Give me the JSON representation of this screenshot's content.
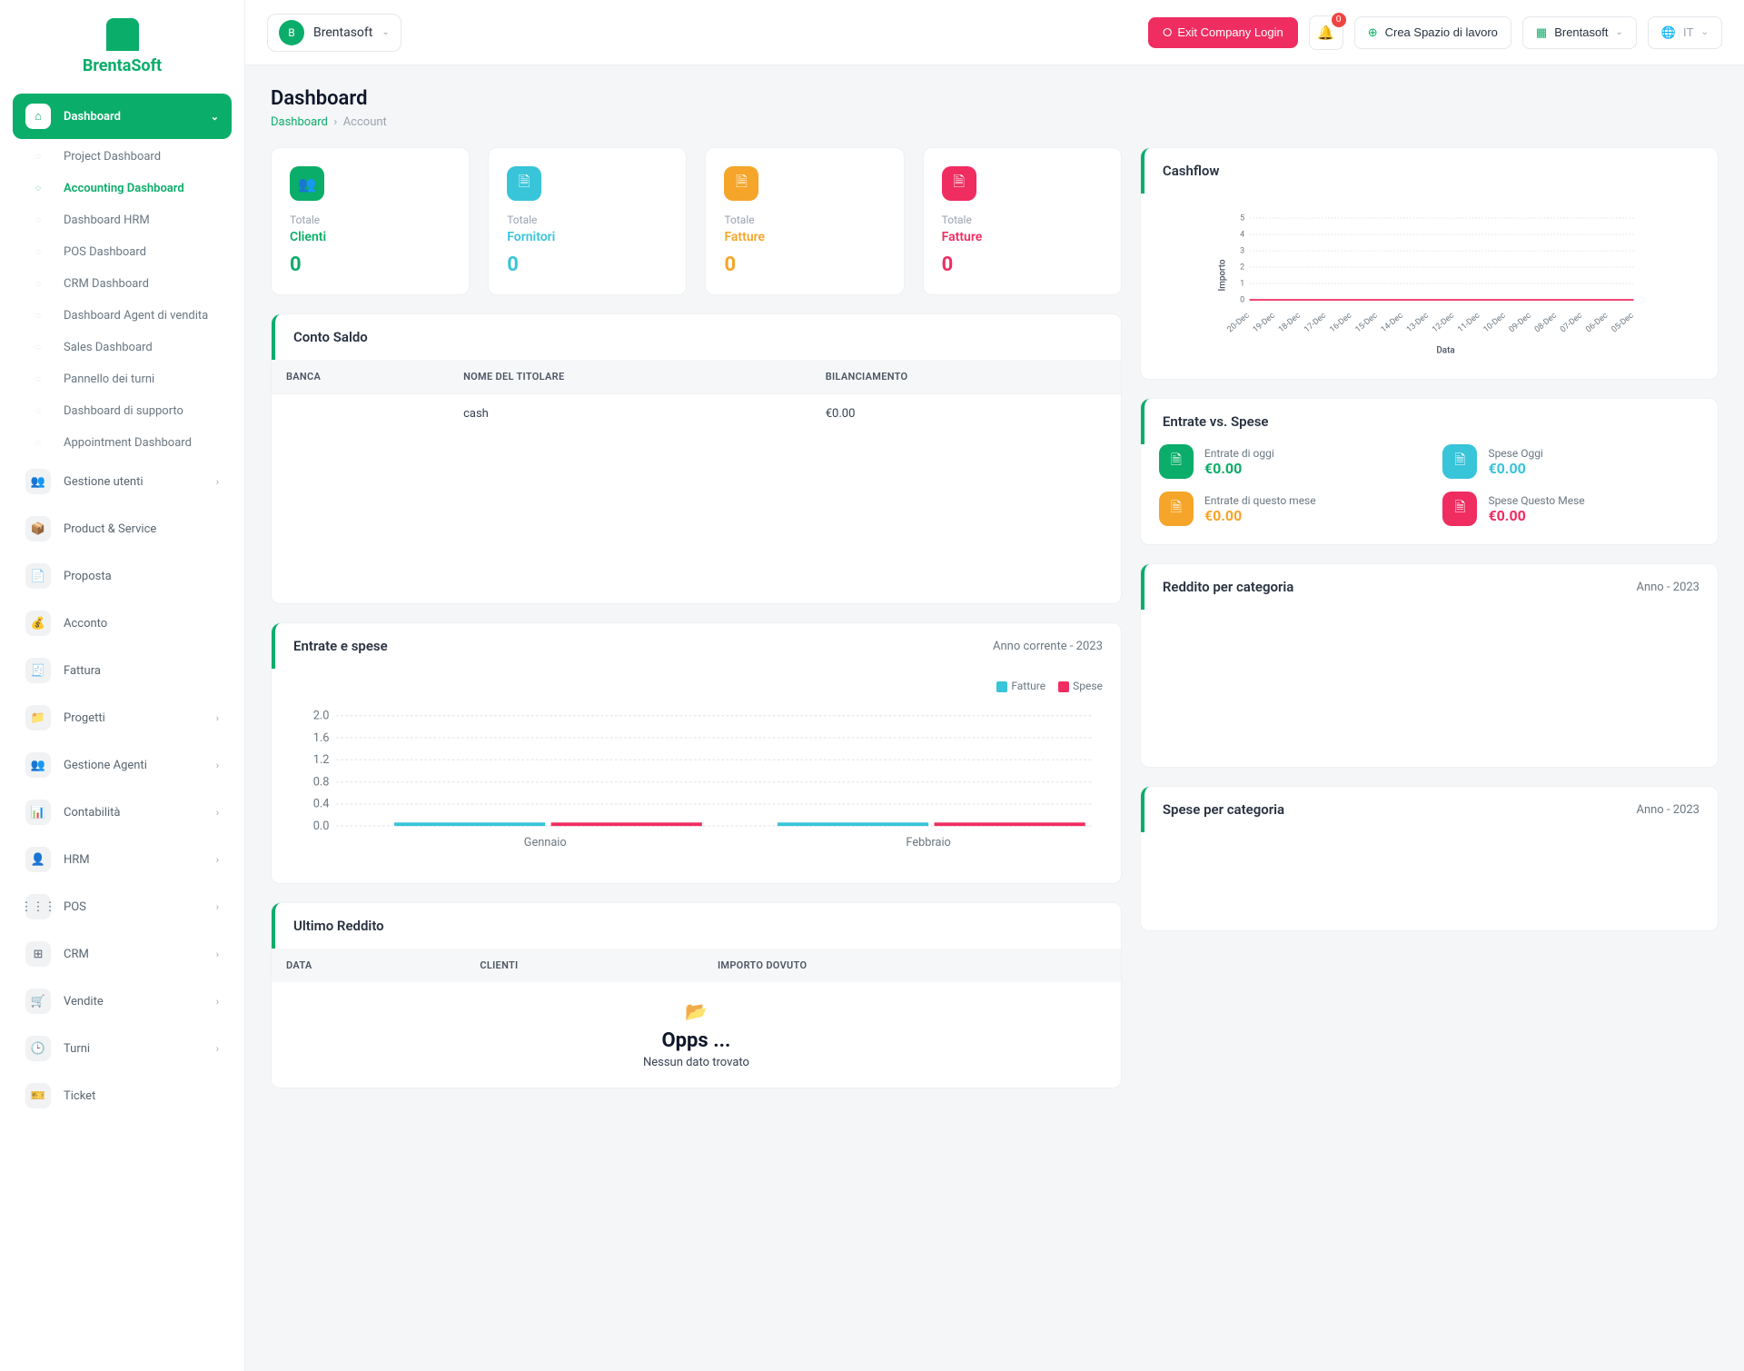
{
  "brand": {
    "name": "BrentaSoft"
  },
  "topbar": {
    "company": "Brentasoft",
    "exit_label": "Exit Company Login",
    "notif_count": "0",
    "create_workspace": "Crea Spazio di lavoro",
    "user": "Brentasoft",
    "lang": "IT"
  },
  "page": {
    "title": "Dashboard",
    "crumb_home": "Dashboard",
    "crumb_current": "Account"
  },
  "sidebar": {
    "dashboard": "Dashboard",
    "subs": [
      "Project Dashboard",
      "Accounting Dashboard",
      "Dashboard HRM",
      "POS Dashboard",
      "CRM Dashboard",
      "Dashboard Agent di vendita",
      "Sales Dashboard",
      "Pannello dei turni",
      "Dashboard di supporto",
      "Appointment Dashboard"
    ],
    "items": [
      "Gestione utenti",
      "Product & Service",
      "Proposta",
      "Acconto",
      "Fattura",
      "Progetti",
      "Gestione Agenti",
      "Contabilità",
      "HRM",
      "POS",
      "CRM",
      "Vendite",
      "Turni",
      "Ticket"
    ],
    "chevron_idx": [
      0,
      5,
      6,
      7,
      8,
      9,
      10,
      11,
      12
    ]
  },
  "kpi": {
    "sub": "Totale",
    "cards": [
      {
        "label": "Clienti",
        "val": "0",
        "color": "green",
        "icon": "👥"
      },
      {
        "label": "Fornitori",
        "val": "0",
        "color": "cyan",
        "icon": "🗎"
      },
      {
        "label": "Fatture",
        "val": "0",
        "color": "orange",
        "icon": "🗎"
      },
      {
        "label": "Fatture",
        "val": "0",
        "color": "pink",
        "icon": "🗎"
      }
    ]
  },
  "balance": {
    "title": "Conto Saldo",
    "cols": [
      "BANCA",
      "NOME DEL TITOLARE",
      "BILANCIAMENTO"
    ],
    "rows": [
      [
        "",
        "cash",
        "€0.00"
      ]
    ]
  },
  "cashflow": {
    "title": "Cashflow",
    "ylabel": "Importo",
    "xlabel": "Data",
    "yticks": [
      "5",
      "4",
      "3",
      "2",
      "1",
      "0"
    ],
    "xticks": [
      "20-Dec",
      "19-Dec",
      "18-Dec",
      "17-Dec",
      "16-Dec",
      "15-Dec",
      "14-Dec",
      "13-Dec",
      "12-Dec",
      "11-Dec",
      "10-Dec",
      "09-Dec",
      "08-Dec",
      "07-Dec",
      "06-Dec",
      "05-Dec"
    ],
    "line_color": "#ef2d61",
    "grid_color": "#e5e7eb"
  },
  "income_expense": {
    "title": "Entrate vs. Spese",
    "items": [
      {
        "lbl": "Entrate di oggi",
        "val": "€0.00",
        "color": "green"
      },
      {
        "lbl": "Spese Oggi",
        "val": "€0.00",
        "color": "cyan"
      },
      {
        "lbl": "Entrate di questo mese",
        "val": "€0.00",
        "color": "orange"
      },
      {
        "lbl": "Spese Questo Mese",
        "val": "€0.00",
        "color": "pink"
      }
    ]
  },
  "bar_chart": {
    "title": "Entrate e spese",
    "subtitle": "Anno corrente - 2023",
    "legend": [
      "Fatture",
      "Spese"
    ],
    "legend_colors": [
      "#38c4d9",
      "#ef2d61"
    ],
    "yticks": [
      "2.0",
      "1.6",
      "1.2",
      "0.8",
      "0.4",
      "0.0"
    ],
    "xticks": [
      "Gennaio",
      "Febbraio"
    ]
  },
  "last_income": {
    "title": "Ultimo Reddito",
    "cols": [
      "DATA",
      "CLIENTI",
      "IMPORTO DOVUTO"
    ],
    "empty_big": "Opps ...",
    "empty_small": "Nessun dato trovato"
  },
  "income_cat": {
    "title": "Reddito per categoria",
    "subtitle": "Anno - 2023"
  },
  "expense_cat": {
    "title": "Spese per categoria",
    "subtitle": "Anno - 2023"
  }
}
